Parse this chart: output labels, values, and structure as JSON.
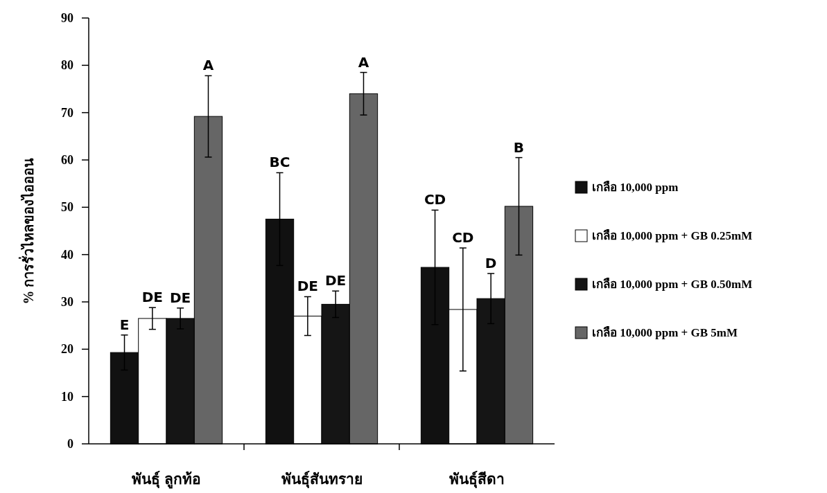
{
  "chart_data": {
    "type": "bar",
    "ylabel": "% การรั่วไหลของไอออน",
    "categories": [
      "พันธุ์ ลูกท้อ",
      "พันธุ์สันทราย",
      "พันธุ์สีดา"
    ],
    "series": [
      {
        "name": "เกลือ 10,000 ppm",
        "color": "#111111",
        "values": [
          19.3,
          47.5,
          37.3
        ],
        "errors": [
          3.7,
          9.8,
          12.1
        ]
      },
      {
        "name": "เกลือ 10,000 ppm + GB 0.25mM",
        "color": "#ffffff",
        "values": [
          26.5,
          27,
          28.4
        ],
        "errors": [
          2.3,
          4.1,
          13
        ]
      },
      {
        "name": "เกลือ 10,000 ppm + GB 0.50mM",
        "color": "#151515",
        "values": [
          26.5,
          29.5,
          30.7
        ],
        "errors": [
          2.2,
          2.8,
          5.3
        ]
      },
      {
        "name": "เกลือ 10,000 ppm + GB 5mM",
        "color": "#666666",
        "values": [
          69.2,
          74,
          50.2
        ],
        "errors": [
          8.6,
          4.5,
          10.3
        ]
      }
    ],
    "annotations": [
      "E",
      "BC",
      "CD",
      "DE",
      "DE",
      "CD",
      "DE",
      "DE",
      "D",
      "A",
      "A",
      "B"
    ],
    "ylim": [
      0,
      90
    ],
    "yticks": [
      0,
      10,
      20,
      30,
      40,
      50,
      60,
      70,
      80,
      90
    ],
    "legend": "right",
    "grid": false
  }
}
